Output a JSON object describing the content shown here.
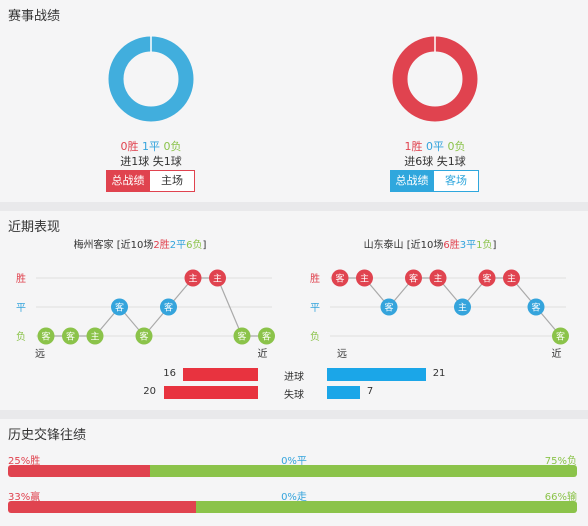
{
  "section1": {
    "title": "赛事战绩",
    "left": {
      "win": "0胜",
      "draw": "1平",
      "loss": "0负",
      "goals_for": "进1球",
      "goals_against": "失1球",
      "donut_color": "#41aedd",
      "tab_all": "总战绩",
      "tab_venue": "主场"
    },
    "right": {
      "win": "1胜",
      "draw": "0平",
      "loss": "0负",
      "goals_for": "进6球",
      "goals_against": "失1球",
      "donut_color": "#e0434f",
      "tab_all": "总战绩",
      "tab_venue": "客场"
    }
  },
  "section2": {
    "title": "近期表现",
    "left": {
      "team": "梅州客家",
      "summary_pre": "[近10场",
      "wins": "2胜",
      "draws": "2平",
      "losses": "6负",
      "summary_post": "]",
      "labels": {
        "win": "胜",
        "draw": "平",
        "loss": "负"
      },
      "far": "远",
      "near": "近",
      "results": [
        "L",
        "L",
        "L",
        "D",
        "L",
        "D",
        "W",
        "W",
        "L",
        "L"
      ],
      "venues": [
        "客",
        "客",
        "主",
        "客",
        "客",
        "客",
        "主",
        "主",
        "客",
        "客"
      ]
    },
    "right": {
      "team": "山东泰山",
      "summary_pre": "[近10场",
      "wins": "6胜",
      "draws": "3平",
      "losses": "1负",
      "summary_post": "]",
      "labels": {
        "win": "胜",
        "draw": "平",
        "loss": "负"
      },
      "far": "远",
      "near": "近",
      "results": [
        "W",
        "W",
        "D",
        "W",
        "W",
        "D",
        "W",
        "W",
        "D",
        "L"
      ],
      "venues": [
        "客",
        "主",
        "客",
        "客",
        "主",
        "主",
        "客",
        "主",
        "客",
        "客"
      ]
    },
    "goals": {
      "scored_label": "进球",
      "conceded_label": "失球",
      "left_scored": 16,
      "left_conceded": 20,
      "right_scored": 21,
      "right_conceded": 7
    }
  },
  "section3": {
    "title": "历史交锋往绩",
    "row1": {
      "left": "25%胜",
      "mid": "0%平",
      "right": "75%负",
      "left_pct": 25,
      "mid_pct": 0,
      "right_pct": 75
    },
    "row2": {
      "left": "33%赢",
      "mid": "0%走",
      "right": "66%输",
      "left_pct": 33,
      "mid_pct": 0,
      "right_pct": 66
    }
  },
  "colors": {
    "win": "#e0434f",
    "draw": "#35a4dc",
    "loss": "#8bc34a",
    "bar_blue": "#1ba6e8"
  }
}
